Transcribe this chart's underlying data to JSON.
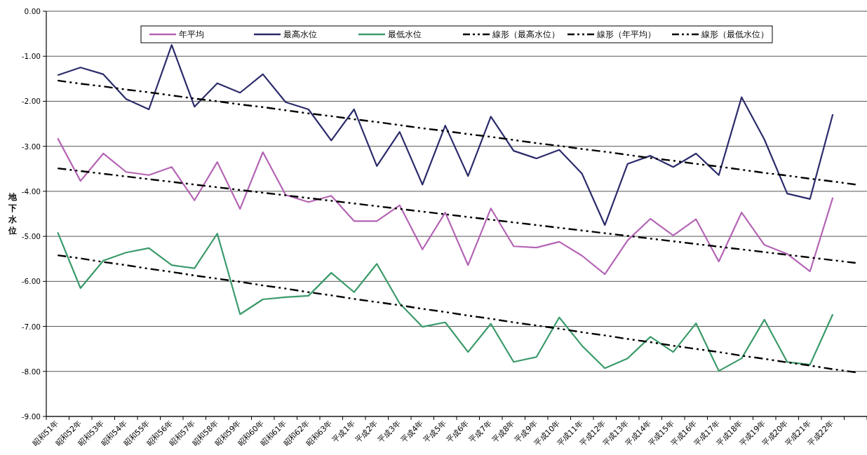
{
  "chart_data": {
    "type": "line",
    "ylabel": "地下水位",
    "categories": [
      "昭和51年",
      "昭和52年",
      "昭和53年",
      "昭和54年",
      "昭和55年",
      "昭和56年",
      "昭和57年",
      "昭和58年",
      "昭和59年",
      "昭和60年",
      "昭和61年",
      "昭和62年",
      "昭和63年",
      "平成1年",
      "平成2年",
      "平成3年",
      "平成4年",
      "平成5年",
      "平成6年",
      "平成7年",
      "平成8年",
      "平成9年",
      "平成10年",
      "平成11年",
      "平成12年",
      "平成13年",
      "平成14年",
      "平成15年",
      "平成16年",
      "平成17年",
      "平成18年",
      "平成19年",
      "平成20年",
      "平成21年",
      "平成22年",
      null
    ],
    "ylim": [
      -9,
      0
    ],
    "yticks": [
      {
        "value": 0,
        "label": "0.00"
      },
      {
        "value": -1,
        "label": "-1.00"
      },
      {
        "value": -2,
        "label": "-2.00"
      },
      {
        "value": -3,
        "label": "-3.00"
      },
      {
        "value": -4,
        "label": "-4.00"
      },
      {
        "value": -5,
        "label": "-5.00"
      },
      {
        "value": -6,
        "label": "-6.00"
      },
      {
        "value": -7,
        "label": "-7.00"
      },
      {
        "value": -8,
        "label": "-8.00"
      },
      {
        "value": -9,
        "label": "-9.00"
      }
    ],
    "grid": "y",
    "legend": "top",
    "series": [
      {
        "name": "年平均",
        "color": "#b464b4",
        "line_style": "solid",
        "values": [
          -2.82,
          -3.77,
          -3.16,
          -3.57,
          -3.64,
          -3.46,
          -4.2,
          -3.35,
          -4.39,
          -3.13,
          -4.08,
          -4.24,
          -4.1,
          -4.66,
          -4.66,
          -4.31,
          -5.29,
          -4.47,
          -5.64,
          -4.38,
          -5.22,
          -5.25,
          -5.12,
          -5.43,
          -5.84,
          -5.09,
          -4.61,
          -4.98,
          -4.62,
          -5.56,
          -4.47,
          -5.19,
          -5.39,
          -5.78,
          -4.14,
          null
        ]
      },
      {
        "name": "最高水位",
        "color": "#2b2b6b",
        "line_style": "solid",
        "values": [
          -1.42,
          -1.25,
          -1.4,
          -1.95,
          -2.18,
          -0.75,
          -2.12,
          -1.6,
          -1.81,
          -1.4,
          -2.02,
          -2.18,
          -2.87,
          -2.18,
          -3.44,
          -2.68,
          -3.85,
          -2.54,
          -3.66,
          -2.34,
          -3.1,
          -3.27,
          -3.08,
          -3.61,
          -4.75,
          -3.39,
          -3.21,
          -3.46,
          -3.16,
          -3.64,
          -1.91,
          -2.85,
          -4.05,
          -4.17,
          -2.29,
          null
        ]
      },
      {
        "name": "最低水位",
        "color": "#3a9a6a",
        "line_style": "solid",
        "values": [
          -4.91,
          -6.15,
          -5.54,
          -5.36,
          -5.26,
          -5.64,
          -5.71,
          -4.94,
          -6.73,
          -6.4,
          -6.35,
          -6.32,
          -5.81,
          -6.24,
          -5.61,
          -6.49,
          -7.01,
          -6.91,
          -7.57,
          -6.94,
          -7.79,
          -7.68,
          -6.8,
          -7.43,
          -7.93,
          -7.71,
          -7.23,
          -7.57,
          -6.93,
          -7.99,
          -7.71,
          -6.85,
          -7.79,
          -7.85,
          -6.73,
          null
        ]
      },
      {
        "name": "線形（最高水位）",
        "color": "#000000",
        "line_style": "dashed",
        "values": [
          -1.54,
          -1.61,
          -1.67,
          -1.74,
          -1.8,
          -1.87,
          -1.94,
          -2.0,
          -2.07,
          -2.13,
          -2.2,
          -2.27,
          -2.33,
          -2.4,
          -2.46,
          -2.53,
          -2.6,
          -2.66,
          -2.73,
          -2.79,
          -2.86,
          -2.93,
          -2.99,
          -3.06,
          -3.12,
          -3.19,
          -3.26,
          -3.32,
          -3.39,
          -3.45,
          -3.52,
          -3.59,
          -3.65,
          -3.72,
          -3.78,
          -3.85
        ]
      },
      {
        "name": "線形（年平均）",
        "color": "#000000",
        "line_style": "dashed",
        "values": [
          -3.49,
          -3.55,
          -3.61,
          -3.67,
          -3.73,
          -3.79,
          -3.85,
          -3.91,
          -3.97,
          -4.03,
          -4.09,
          -4.15,
          -4.21,
          -4.27,
          -4.33,
          -4.39,
          -4.45,
          -4.51,
          -4.57,
          -4.63,
          -4.69,
          -4.75,
          -4.81,
          -4.87,
          -4.93,
          -4.99,
          -5.05,
          -5.11,
          -5.17,
          -5.23,
          -5.29,
          -5.35,
          -5.41,
          -5.47,
          -5.53,
          -5.59
        ]
      },
      {
        "name": "線形（最低水位）",
        "color": "#000000",
        "line_style": "dashed",
        "values": [
          -5.42,
          -5.49,
          -5.57,
          -5.64,
          -5.72,
          -5.79,
          -5.87,
          -5.94,
          -6.01,
          -6.09,
          -6.16,
          -6.24,
          -6.31,
          -6.39,
          -6.46,
          -6.53,
          -6.61,
          -6.68,
          -6.76,
          -6.83,
          -6.91,
          -6.98,
          -7.05,
          -7.13,
          -7.2,
          -7.28,
          -7.35,
          -7.43,
          -7.5,
          -7.57,
          -7.65,
          -7.72,
          -7.8,
          -7.87,
          -7.95,
          -8.02
        ]
      }
    ]
  }
}
